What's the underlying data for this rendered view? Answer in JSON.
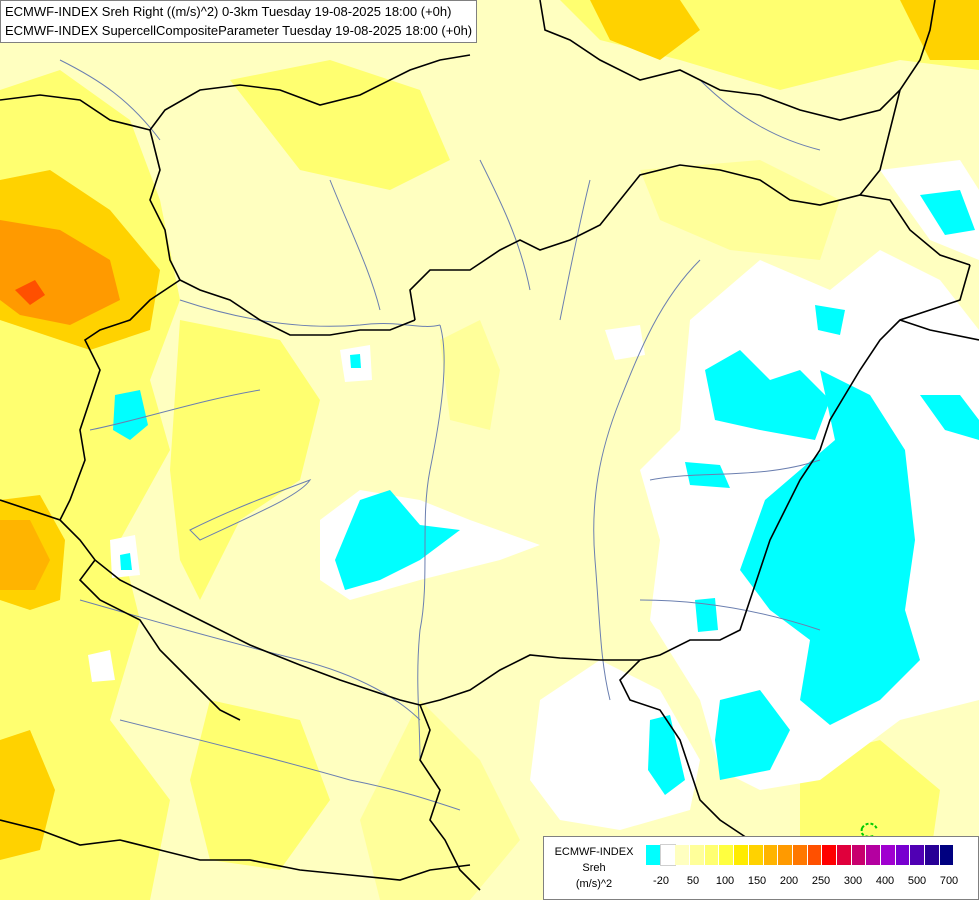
{
  "title": {
    "line1": "ECMWF-INDEX Sreh Right ((m/s)^2) 0-3km Tuesday 19-08-2025 18:00 (+0h)",
    "line2": "ECMWF-INDEX SupercellCompositeParameter Tuesday 19-08-2025 18:00 (+0h)"
  },
  "legend": {
    "title1": "ECMWF-INDEX",
    "title2": "Sreh",
    "title3": "(m/s)^2",
    "colors": [
      "#00ffff",
      "#ffffff",
      "#ffffc0",
      "#ffff9a",
      "#ffff70",
      "#ffff40",
      "#ffeb00",
      "#ffd200",
      "#ffb400",
      "#ff9a00",
      "#ff7800",
      "#ff5000",
      "#ff0000",
      "#e0003c",
      "#c8006e",
      "#b400a0",
      "#a000d0",
      "#7800d0",
      "#5000b4",
      "#280096",
      "#000080"
    ],
    "ticks": [
      "-20",
      "50",
      "100",
      "150",
      "200",
      "250",
      "300",
      "400",
      "500",
      "700"
    ]
  }
}
